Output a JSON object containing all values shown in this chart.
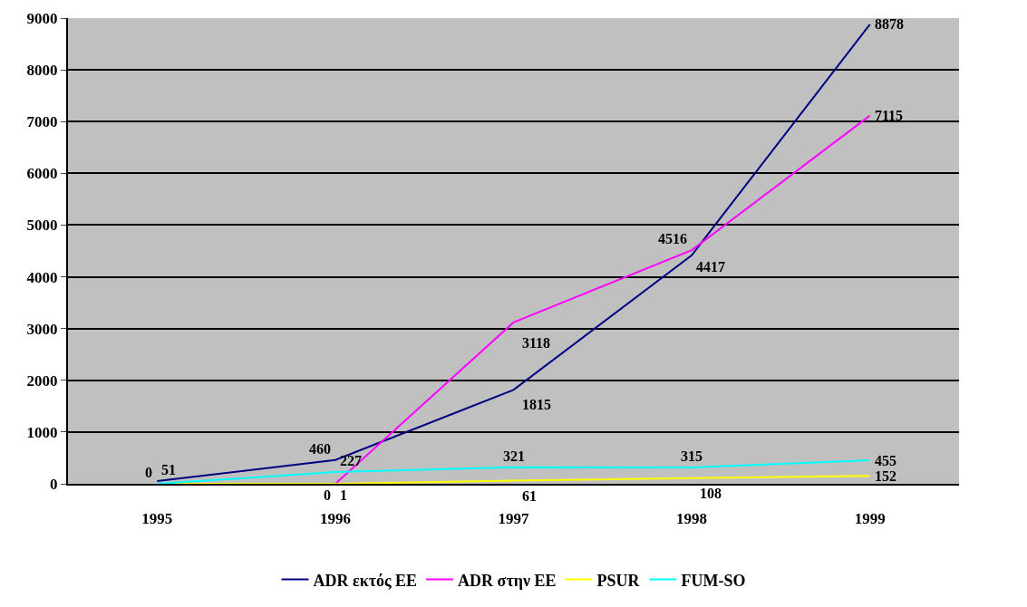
{
  "chart_data": {
    "type": "line",
    "categories": [
      "1995",
      "1996",
      "1997",
      "1998",
      "1999"
    ],
    "series": [
      {
        "name": "ADR εκτός ΕΕ",
        "color": "#000080",
        "values": [
          51,
          460,
          1815,
          4417,
          8878
        ],
        "value_labels": [
          "51",
          "460",
          "1815",
          "4417",
          "8878"
        ]
      },
      {
        "name": "ADR στην ΕΕ",
        "color": "#ff00ff",
        "values": [
          0,
          0,
          3118,
          4516,
          7115
        ],
        "value_labels": [
          "0",
          "0",
          "3118",
          "4516",
          "7115"
        ]
      },
      {
        "name": "PSUR",
        "color": "#ffff00",
        "values": [
          0,
          1,
          61,
          108,
          152
        ],
        "value_labels": [
          null,
          "1",
          "61",
          "108",
          "152"
        ]
      },
      {
        "name": "FUM-SO",
        "color": "#00ffff",
        "values": [
          0,
          227,
          321,
          315,
          455
        ],
        "value_labels": [
          null,
          "227",
          "321",
          "315",
          "455"
        ]
      }
    ],
    "ylim": [
      0,
      9000
    ],
    "yticks": [
      0,
      1000,
      2000,
      3000,
      4000,
      5000,
      6000,
      7000,
      8000,
      9000
    ],
    "grid": "y",
    "legend": "bottom",
    "marker": "none",
    "line_style": "solid"
  }
}
